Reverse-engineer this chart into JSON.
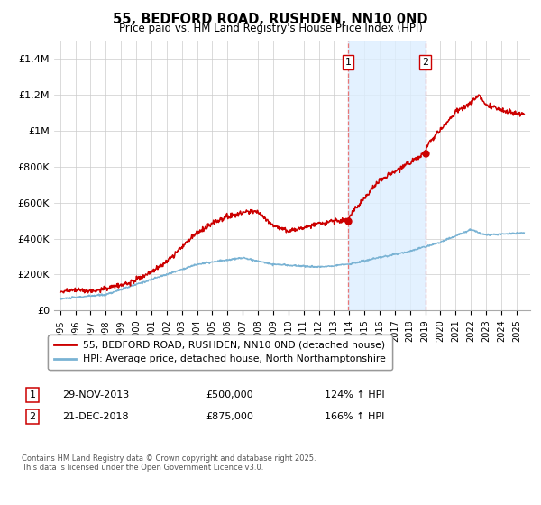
{
  "title1": "55, BEDFORD ROAD, RUSHDEN, NN10 0ND",
  "title2": "Price paid vs. HM Land Registry's House Price Index (HPI)",
  "sale1_date": "29-NOV-2013",
  "sale1_price": 500000,
  "sale1_label": "124% ↑ HPI",
  "sale2_date": "21-DEC-2018",
  "sale2_price": 875000,
  "sale2_label": "166% ↑ HPI",
  "hpi_color": "#7ab3d4",
  "price_color": "#cc0000",
  "shade_color": "#ddeeff",
  "dashed_color": "#e87777",
  "background": "#ffffff",
  "grid_color": "#cccccc",
  "footnote": "Contains HM Land Registry data © Crown copyright and database right 2025.\nThis data is licensed under the Open Government Licence v3.0.",
  "legend_line1": "55, BEDFORD ROAD, RUSHDEN, NN10 0ND (detached house)",
  "legend_line2": "HPI: Average price, detached house, North Northamptonshire",
  "ylim": [
    0,
    1500000
  ],
  "yticks": [
    0,
    200000,
    400000,
    600000,
    800000,
    1000000,
    1200000,
    1400000
  ],
  "ytick_labels": [
    "£0",
    "£200K",
    "£400K",
    "£600K",
    "£800K",
    "£1M",
    "£1.2M",
    "£1.4M"
  ],
  "xlim_left": 1994.6,
  "xlim_right": 2025.9
}
